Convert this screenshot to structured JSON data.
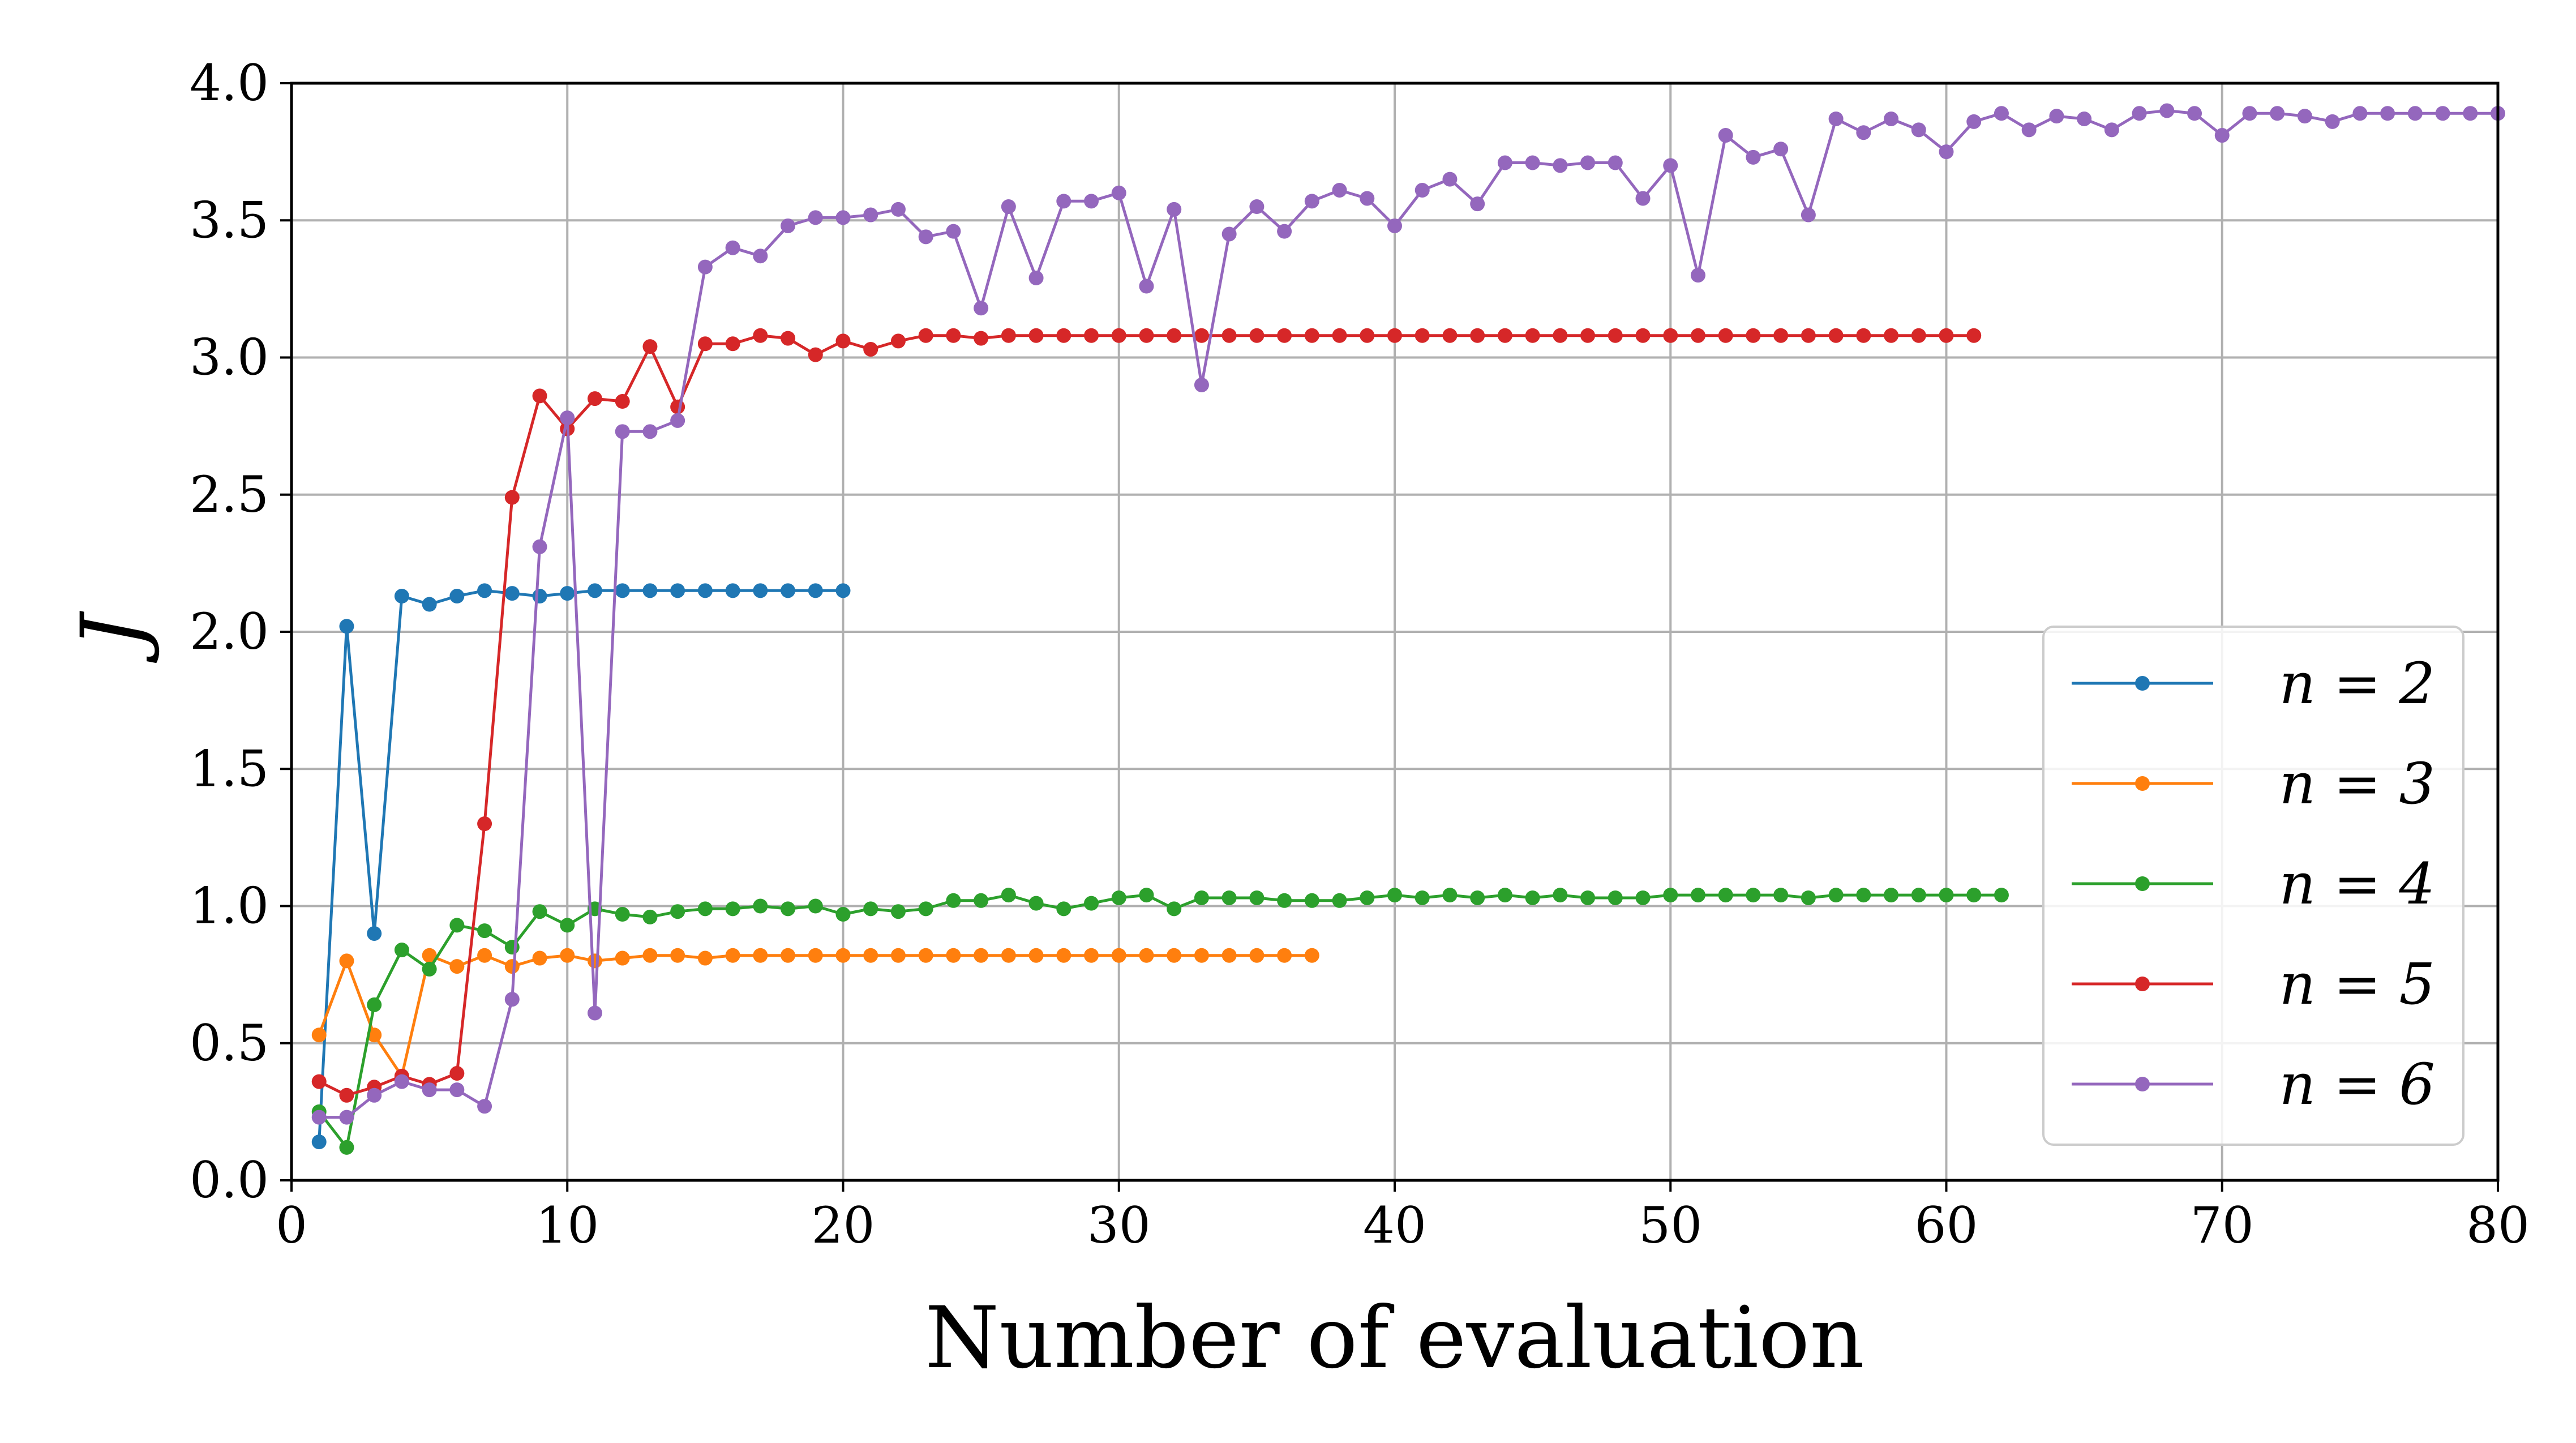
{
  "chart_data": {
    "type": "line",
    "title": "",
    "xlabel": "Number of evaluation",
    "ylabel": "J",
    "xlim": [
      0,
      80
    ],
    "ylim": [
      0,
      4.0
    ],
    "xticks": [
      0,
      10,
      20,
      30,
      40,
      50,
      60,
      70,
      80
    ],
    "xtick_labels": [
      "0",
      "10",
      "20",
      "30",
      "40",
      "50",
      "60",
      "70",
      "80"
    ],
    "yticks": [
      0,
      0.5,
      1.0,
      1.5,
      2.0,
      2.5,
      3.0,
      3.5,
      4.0
    ],
    "ytick_labels": [
      "0.0",
      "0.5",
      "1.0",
      "1.5",
      "2.0",
      "2.5",
      "3.0",
      "3.5",
      "4.0"
    ],
    "grid": true,
    "legend_position": "lower-right",
    "series": [
      {
        "name": "n = 2",
        "color": "#1f77b4",
        "x": [
          1,
          2,
          3,
          4,
          5,
          6,
          7,
          8,
          9,
          10,
          11,
          12,
          13,
          14,
          15,
          16,
          17,
          18,
          19,
          20
        ],
        "y": [
          0.14,
          2.02,
          0.9,
          2.13,
          2.1,
          2.13,
          2.15,
          2.14,
          2.13,
          2.14,
          2.15,
          2.15,
          2.15,
          2.15,
          2.15,
          2.15,
          2.15,
          2.15,
          2.15,
          2.15
        ]
      },
      {
        "name": "n = 3",
        "color": "#ff7f0e",
        "x": [
          1,
          2,
          3,
          4,
          5,
          6,
          7,
          8,
          9,
          10,
          11,
          12,
          13,
          14,
          15,
          16,
          17,
          18,
          19,
          20,
          21,
          22,
          23,
          24,
          25,
          26,
          27,
          28,
          29,
          30,
          31,
          32,
          33,
          34,
          35,
          36,
          37
        ],
        "y": [
          0.53,
          0.8,
          0.53,
          0.38,
          0.82,
          0.78,
          0.82,
          0.78,
          0.81,
          0.82,
          0.8,
          0.81,
          0.82,
          0.82,
          0.81,
          0.82,
          0.82,
          0.82,
          0.82,
          0.82,
          0.82,
          0.82,
          0.82,
          0.82,
          0.82,
          0.82,
          0.82,
          0.82,
          0.82,
          0.82,
          0.82,
          0.82,
          0.82,
          0.82,
          0.82,
          0.82,
          0.82
        ]
      },
      {
        "name": "n = 4",
        "color": "#2ca02c",
        "x": [
          1,
          2,
          3,
          4,
          5,
          6,
          7,
          8,
          9,
          10,
          11,
          12,
          13,
          14,
          15,
          16,
          17,
          18,
          19,
          20,
          21,
          22,
          23,
          24,
          25,
          26,
          27,
          28,
          29,
          30,
          31,
          32,
          33,
          34,
          35,
          36,
          37,
          38,
          39,
          40,
          41,
          42,
          43,
          44,
          45,
          46,
          47,
          48,
          49,
          50,
          51,
          52,
          53,
          54,
          55,
          56,
          57,
          58,
          59,
          60,
          61,
          62
        ],
        "y": [
          0.25,
          0.12,
          0.64,
          0.84,
          0.77,
          0.93,
          0.91,
          0.85,
          0.98,
          0.93,
          0.99,
          0.97,
          0.96,
          0.98,
          0.99,
          0.99,
          1.0,
          0.99,
          1.0,
          0.97,
          0.99,
          0.98,
          0.99,
          1.02,
          1.02,
          1.04,
          1.01,
          0.99,
          1.01,
          1.03,
          1.04,
          0.99,
          1.03,
          1.03,
          1.03,
          1.02,
          1.02,
          1.02,
          1.03,
          1.04,
          1.03,
          1.04,
          1.03,
          1.04,
          1.03,
          1.04,
          1.03,
          1.03,
          1.03,
          1.04,
          1.04,
          1.04,
          1.04,
          1.04,
          1.03,
          1.04,
          1.04,
          1.04,
          1.04,
          1.04,
          1.04,
          1.04
        ]
      },
      {
        "name": "n = 5",
        "color": "#d62728",
        "x": [
          1,
          2,
          3,
          4,
          5,
          6,
          7,
          8,
          9,
          10,
          11,
          12,
          13,
          14,
          15,
          16,
          17,
          18,
          19,
          20,
          21,
          22,
          23,
          24,
          25,
          26,
          27,
          28,
          29,
          30,
          31,
          32,
          33,
          34,
          35,
          36,
          37,
          38,
          39,
          40,
          41,
          42,
          43,
          44,
          45,
          46,
          47,
          48,
          49,
          50,
          51,
          52,
          53,
          54,
          55,
          56,
          57,
          58,
          59,
          60,
          61
        ],
        "y": [
          0.36,
          0.31,
          0.34,
          0.38,
          0.35,
          0.39,
          1.3,
          2.49,
          2.86,
          2.74,
          2.85,
          2.84,
          3.04,
          2.82,
          3.05,
          3.05,
          3.08,
          3.07,
          3.01,
          3.06,
          3.03,
          3.06,
          3.08,
          3.08,
          3.07,
          3.08,
          3.08,
          3.08,
          3.08,
          3.08,
          3.08,
          3.08,
          3.08,
          3.08,
          3.08,
          3.08,
          3.08,
          3.08,
          3.08,
          3.08,
          3.08,
          3.08,
          3.08,
          3.08,
          3.08,
          3.08,
          3.08,
          3.08,
          3.08,
          3.08,
          3.08,
          3.08,
          3.08,
          3.08,
          3.08,
          3.08,
          3.08,
          3.08,
          3.08,
          3.08,
          3.08
        ]
      },
      {
        "name": "n = 6",
        "color": "#9467bd",
        "x": [
          1,
          2,
          3,
          4,
          5,
          6,
          7,
          8,
          9,
          10,
          11,
          12,
          13,
          14,
          15,
          16,
          17,
          18,
          19,
          20,
          21,
          22,
          23,
          24,
          25,
          26,
          27,
          28,
          29,
          30,
          31,
          32,
          33,
          34,
          35,
          36,
          37,
          38,
          39,
          40,
          41,
          42,
          43,
          44,
          45,
          46,
          47,
          48,
          49,
          50,
          51,
          52,
          53,
          54,
          55,
          56,
          57,
          58,
          59,
          60,
          61,
          62,
          63,
          64,
          65,
          66,
          67,
          68,
          69,
          70,
          71,
          72,
          73,
          74,
          75,
          76,
          77,
          78,
          79,
          80
        ],
        "y": [
          0.23,
          0.23,
          0.31,
          0.36,
          0.33,
          0.33,
          0.27,
          0.66,
          2.31,
          2.78,
          0.61,
          2.73,
          2.73,
          2.77,
          3.33,
          3.4,
          3.37,
          3.48,
          3.51,
          3.51,
          3.52,
          3.54,
          3.44,
          3.46,
          3.18,
          3.55,
          3.29,
          3.57,
          3.57,
          3.6,
          3.26,
          3.54,
          2.9,
          3.45,
          3.55,
          3.46,
          3.57,
          3.61,
          3.58,
          3.48,
          3.61,
          3.65,
          3.56,
          3.71,
          3.71,
          3.7,
          3.71,
          3.71,
          3.58,
          3.7,
          3.3,
          3.81,
          3.73,
          3.76,
          3.52,
          3.87,
          3.82,
          3.87,
          3.83,
          3.75,
          3.86,
          3.89,
          3.83,
          3.88,
          3.87,
          3.83,
          3.89,
          3.9,
          3.89,
          3.81,
          3.89,
          3.89,
          3.88,
          3.86,
          3.89,
          3.89,
          3.89,
          3.89,
          3.89,
          3.89
        ]
      }
    ]
  }
}
